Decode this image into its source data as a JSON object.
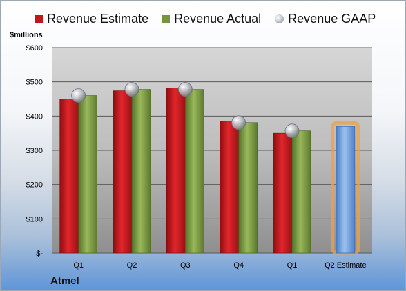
{
  "legend": {
    "estimate": "Revenue Estimate",
    "actual": "Revenue Actual",
    "gaap": "Revenue GAAP"
  },
  "unit_label": "$millions",
  "company": "Atmel",
  "chart_data": {
    "type": "bar",
    "categories": [
      "Q1",
      "Q2",
      "Q3",
      "Q4",
      "Q1",
      "Q2 Estimate"
    ],
    "series": [
      {
        "name": "Revenue Estimate",
        "values": [
          450,
          474,
          482,
          385,
          350,
          370
        ],
        "color": "#c0171c"
      },
      {
        "name": "Revenue Actual",
        "values": [
          460,
          478,
          478,
          381,
          357,
          null
        ],
        "color": "#74953c"
      },
      {
        "name": "Revenue GAAP",
        "values": [
          460,
          478,
          478,
          381,
          357,
          null
        ],
        "color": "#a6abb2"
      }
    ],
    "highlight": {
      "category_index": 5,
      "color": "#6fa0dc",
      "glow": "#f0a040"
    },
    "ylim": [
      0,
      600
    ],
    "yticks": [
      0,
      100,
      200,
      300,
      400,
      500,
      600
    ],
    "ytick_labels": [
      "$-",
      "$100",
      "$200",
      "$300",
      "$400",
      "$500",
      "$600"
    ],
    "grid": true,
    "legend_position": "top"
  }
}
